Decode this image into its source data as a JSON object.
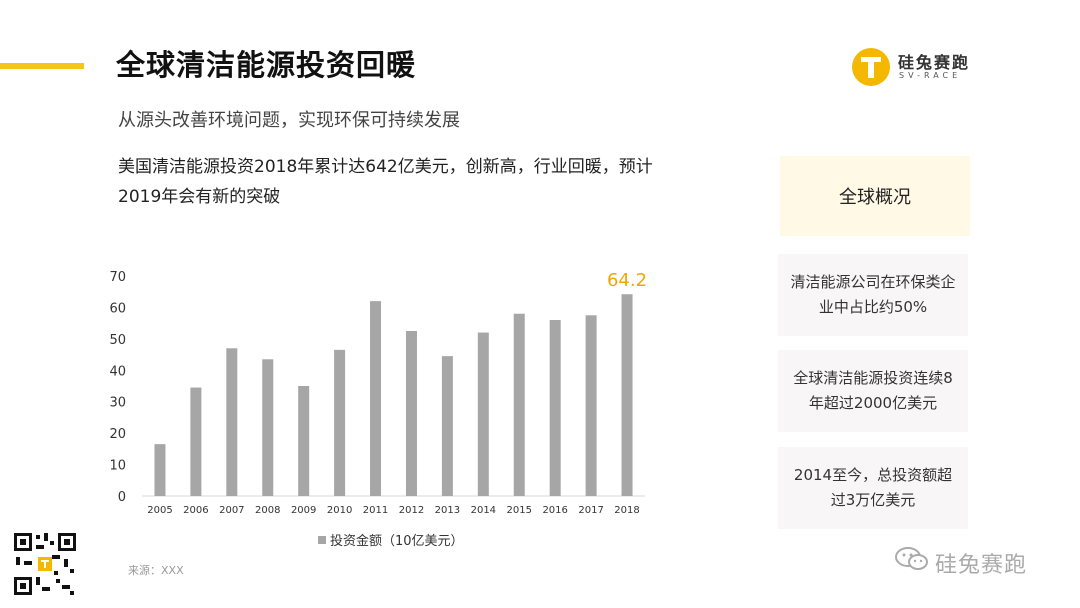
{
  "header": {
    "title": "全球清洁能源投资回暖",
    "subtitle": "从源头改善环境问题，实现环保可持续发展",
    "headline": "美国清洁能源投资2018年累计达642亿美元，创新高，行业回暖，预计2019年会有新的突破"
  },
  "logo": {
    "name": "硅兔赛跑",
    "sub": "SV-RACE"
  },
  "side": {
    "header": "全球概况",
    "cards": [
      "清洁能源公司在环保类企业中占比约50%",
      "全球清洁能源投资连续8年超过2000亿美元",
      "2014至今，总投资额超过3万亿美元"
    ]
  },
  "footer": {
    "source": "来源：XXX",
    "wechat_name": "硅兔赛跑"
  },
  "colors": {
    "accent": "#f5c518",
    "bar": "#a6a6a6",
    "highlight_label": "#f0a800"
  },
  "chart_data": {
    "type": "bar",
    "categories": [
      "2005",
      "2006",
      "2007",
      "2008",
      "2009",
      "2010",
      "2011",
      "2012",
      "2013",
      "2014",
      "2015",
      "2016",
      "2017",
      "2018"
    ],
    "series": [
      {
        "name": "投资金额（10亿美元）",
        "values": [
          16.5,
          34.5,
          47,
          43.5,
          35,
          46.5,
          62,
          52.5,
          44.5,
          52,
          58,
          56,
          57.5,
          64.2
        ]
      }
    ],
    "ylim": [
      0,
      70
    ],
    "yticks": [
      0,
      10,
      20,
      30,
      40,
      50,
      60,
      70
    ],
    "data_labels": [
      {
        "category": "2018",
        "text": "64.2"
      }
    ],
    "legend": "bottom",
    "grid": false
  }
}
